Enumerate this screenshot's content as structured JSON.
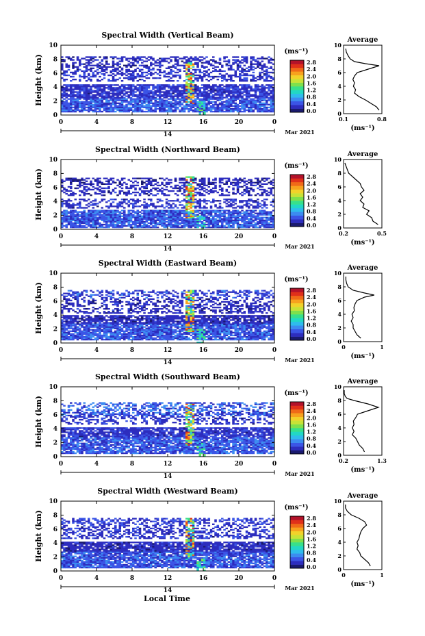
{
  "figure": {
    "xlabel": "Local Time",
    "date_label": "Mar 2021",
    "day_label": "14",
    "ylabel": "Height (km)",
    "unit_label": "(ms⁻¹)",
    "avg_title": "Average",
    "avg_xlabel": "(ms⁻¹)"
  },
  "colors": {
    "scale": [
      "#1a1a6e",
      "#2d2dbe",
      "#3b55e6",
      "#3c8cf0",
      "#2fbcec",
      "#22d8c4",
      "#38e08a",
      "#7ee04c",
      "#c8e236",
      "#f2d22a",
      "#f7a21e",
      "#f06a18",
      "#e0301a",
      "#b3122a"
    ]
  },
  "chart_data": [
    {
      "type": "heatmap",
      "title": "Spectral Width (Vertical Beam)",
      "x_ticks": [
        "0",
        "4",
        "8",
        "12",
        "16",
        "20",
        "0"
      ],
      "y_ticks": [
        "0",
        "2",
        "4",
        "6",
        "8",
        "10"
      ],
      "xlim": [
        0,
        24
      ],
      "ylim": [
        0,
        10
      ],
      "colorbar_ticks": [
        "0.0",
        "0.4",
        "0.8",
        "1.2",
        "1.6",
        "2.0",
        "2.4",
        "2.8"
      ],
      "colorbar_range": [
        0,
        3.0
      ],
      "layers": [
        [
          0.3,
          2.2,
          0.5
        ],
        [
          2.4,
          4.2,
          0.35
        ],
        [
          4.8,
          6.5,
          0.35
        ],
        [
          6.5,
          8.3,
          0.3
        ]
      ],
      "avg": {
        "xticks": [
          "0.1",
          "0.8"
        ],
        "xlim": [
          0.1,
          0.8
        ],
        "profile": [
          [
            0.5,
            0.75
          ],
          [
            1,
            0.7
          ],
          [
            1.5,
            0.6
          ],
          [
            2,
            0.5
          ],
          [
            2.5,
            0.38
          ],
          [
            3,
            0.3
          ],
          [
            3.5,
            0.32
          ],
          [
            4,
            0.28
          ],
          [
            4.5,
            0.3
          ],
          [
            5,
            0.27
          ],
          [
            5.5,
            0.3
          ],
          [
            6,
            0.35
          ],
          [
            6.5,
            0.55
          ],
          [
            7,
            0.75
          ],
          [
            7.3,
            0.5
          ],
          [
            7.6,
            0.3
          ],
          [
            8,
            0.22
          ],
          [
            8.5,
            0.18
          ],
          [
            9,
            0.15
          ],
          [
            9.5,
            0.14
          ]
        ]
      }
    },
    {
      "type": "heatmap",
      "title": "Spectral Width (Northward Beam)",
      "x_ticks": [
        "0",
        "4",
        "8",
        "12",
        "16",
        "20",
        "0"
      ],
      "y_ticks": [
        "0",
        "2",
        "4",
        "6",
        "8",
        "10"
      ],
      "xlim": [
        0,
        24
      ],
      "ylim": [
        0,
        10
      ],
      "colorbar_ticks": [
        "0.0",
        "0.4",
        "0.8",
        "1.2",
        "1.6",
        "2.0",
        "2.4",
        "2.8"
      ],
      "colorbar_range": [
        0,
        3.0
      ],
      "layers": [
        [
          0.2,
          2.8,
          0.5
        ],
        [
          3,
          4.2,
          0.35
        ],
        [
          4.8,
          6.2,
          0.3
        ],
        [
          6.3,
          7.2,
          0.25
        ]
      ],
      "avg": {
        "xticks": [
          "0.2",
          "0.5"
        ],
        "xlim": [
          0.2,
          0.5
        ],
        "profile": [
          [
            0.5,
            0.47
          ],
          [
            1,
            0.43
          ],
          [
            1.5,
            0.42
          ],
          [
            2,
            0.38
          ],
          [
            2.5,
            0.4
          ],
          [
            3,
            0.35
          ],
          [
            3.5,
            0.36
          ],
          [
            4,
            0.33
          ],
          [
            4.5,
            0.35
          ],
          [
            5,
            0.33
          ],
          [
            5.5,
            0.36
          ],
          [
            6,
            0.34
          ],
          [
            6.5,
            0.33
          ],
          [
            7,
            0.3
          ],
          [
            7.5,
            0.27
          ],
          [
            8,
            0.24
          ],
          [
            8.5,
            0.23
          ],
          [
            9,
            0.22
          ],
          [
            9.5,
            0.21
          ]
        ]
      }
    },
    {
      "type": "heatmap",
      "title": "Spectral Width (Eastward Beam)",
      "x_ticks": [
        "0",
        "4",
        "8",
        "12",
        "16",
        "20",
        "0"
      ],
      "y_ticks": [
        "0",
        "2",
        "4",
        "6",
        "8",
        "10"
      ],
      "xlim": [
        0,
        24
      ],
      "ylim": [
        0,
        10
      ],
      "colorbar_ticks": [
        "0.0",
        "0.4",
        "0.8",
        "1.2",
        "1.6",
        "2.0",
        "2.4",
        "2.8"
      ],
      "colorbar_range": [
        0,
        3.0
      ],
      "layers": [
        [
          0.3,
          2.6,
          0.5
        ],
        [
          2.6,
          3.8,
          0.3
        ],
        [
          4.2,
          6.2,
          0.3
        ],
        [
          6.3,
          7.4,
          0.45
        ]
      ],
      "avg": {
        "xticks": [
          "0",
          "1"
        ],
        "xlim": [
          0,
          1
        ],
        "profile": [
          [
            0.5,
            0.45
          ],
          [
            1,
            0.35
          ],
          [
            1.5,
            0.3
          ],
          [
            2,
            0.25
          ],
          [
            2.5,
            0.25
          ],
          [
            3,
            0.2
          ],
          [
            3.5,
            0.25
          ],
          [
            4,
            0.22
          ],
          [
            4.5,
            0.28
          ],
          [
            5,
            0.27
          ],
          [
            5.5,
            0.3
          ],
          [
            6,
            0.35
          ],
          [
            6.5,
            0.55
          ],
          [
            6.8,
            0.8
          ],
          [
            7.1,
            0.55
          ],
          [
            7.5,
            0.25
          ],
          [
            8,
            0.12
          ],
          [
            8.5,
            0.08
          ],
          [
            9,
            0.06
          ],
          [
            9.5,
            0.06
          ]
        ]
      }
    },
    {
      "type": "heatmap",
      "title": "Spectral Width (Southward Beam)",
      "x_ticks": [
        "0",
        "4",
        "8",
        "12",
        "16",
        "20",
        "0"
      ],
      "y_ticks": [
        "0",
        "2",
        "4",
        "6",
        "8",
        "10"
      ],
      "xlim": [
        0,
        24
      ],
      "ylim": [
        0,
        10
      ],
      "colorbar_ticks": [
        "0.0",
        "0.4",
        "0.8",
        "1.2",
        "1.6",
        "2.0",
        "2.4",
        "2.8"
      ],
      "colorbar_range": [
        0,
        3.0
      ],
      "layers": [
        [
          0.3,
          2.6,
          0.5
        ],
        [
          2.8,
          4.0,
          0.35
        ],
        [
          4.5,
          6.2,
          0.35
        ],
        [
          5.8,
          7.8,
          0.55
        ]
      ],
      "avg": {
        "xticks": [
          "0.2",
          "1.3"
        ],
        "xlim": [
          0.2,
          1.3
        ],
        "profile": [
          [
            0.5,
            0.8
          ],
          [
            1,
            0.75
          ],
          [
            1.5,
            0.65
          ],
          [
            2,
            0.6
          ],
          [
            2.5,
            0.55
          ],
          [
            3,
            0.45
          ],
          [
            3.5,
            0.5
          ],
          [
            4,
            0.45
          ],
          [
            4.5,
            0.5
          ],
          [
            5,
            0.48
          ],
          [
            5.5,
            0.55
          ],
          [
            6,
            0.6
          ],
          [
            6.5,
            0.9
          ],
          [
            7,
            1.2
          ],
          [
            7.5,
            0.9
          ],
          [
            8,
            0.5
          ],
          [
            8.3,
            0.3
          ],
          [
            8.6,
            0.25
          ],
          [
            9,
            0.22
          ],
          [
            9.5,
            0.22
          ]
        ]
      }
    },
    {
      "type": "heatmap",
      "title": "Spectral Width (Westward Beam)",
      "x_ticks": [
        "0",
        "4",
        "8",
        "12",
        "16",
        "20",
        "0"
      ],
      "y_ticks": [
        "0",
        "2",
        "4",
        "6",
        "8",
        "10"
      ],
      "xlim": [
        0,
        24
      ],
      "ylim": [
        0,
        10
      ],
      "colorbar_ticks": [
        "0.0",
        "0.4",
        "0.8",
        "1.2",
        "1.6",
        "2.0",
        "2.4",
        "2.8"
      ],
      "colorbar_range": [
        0,
        3.0
      ],
      "layers": [
        [
          0.3,
          2.8,
          0.5
        ],
        [
          2.6,
          4.0,
          0.3
        ],
        [
          4.5,
          6.5,
          0.35
        ],
        [
          6.5,
          7.5,
          0.4
        ]
      ],
      "avg": {
        "xticks": [
          "0",
          "1"
        ],
        "xlim": [
          0,
          1
        ],
        "profile": [
          [
            0.5,
            0.7
          ],
          [
            1,
            0.65
          ],
          [
            1.5,
            0.55
          ],
          [
            2,
            0.45
          ],
          [
            2.5,
            0.42
          ],
          [
            3,
            0.35
          ],
          [
            3.5,
            0.38
          ],
          [
            4,
            0.35
          ],
          [
            4.5,
            0.4
          ],
          [
            5,
            0.42
          ],
          [
            5.5,
            0.45
          ],
          [
            6,
            0.5
          ],
          [
            6.5,
            0.6
          ],
          [
            7,
            0.55
          ],
          [
            7.5,
            0.4
          ],
          [
            8,
            0.2
          ],
          [
            8.5,
            0.1
          ],
          [
            9,
            0.05
          ],
          [
            9.5,
            0.05
          ]
        ]
      }
    }
  ]
}
